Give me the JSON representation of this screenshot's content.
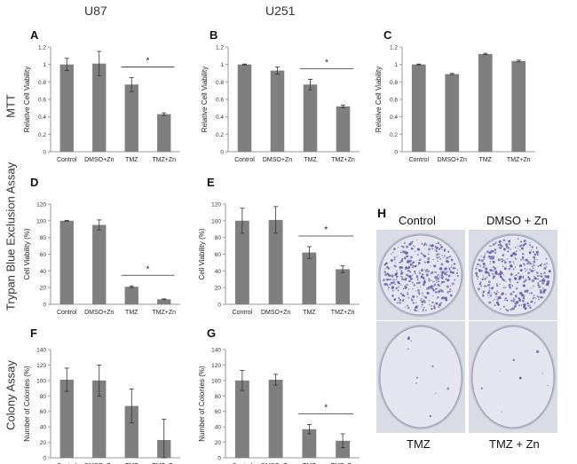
{
  "column_headers": [
    "U87",
    "U251"
  ],
  "row_headers": [
    "MTT",
    "Trypan Blue Exclusion Assay",
    "Colony Assay"
  ],
  "colony_images": {
    "letter": "H",
    "captions": [
      "Control",
      "DMSO + Zn",
      "TMZ",
      "TMZ + Zn"
    ]
  },
  "colors": {
    "bar": "#7f7f7f",
    "axis": "#9a9a9a",
    "dish_bg": "#c9cdd6",
    "colony": "#5d5aa8"
  },
  "chart_data": [
    {
      "id": "A",
      "type": "bar",
      "categories": [
        "Control",
        "DMSO+Zn",
        "TMZ",
        "TMZ+Zn"
      ],
      "values": [
        1.0,
        1.01,
        0.77,
        0.43
      ],
      "errors": [
        0.07,
        0.14,
        0.08,
        0.015
      ],
      "ylabel": "Relative Cell Viability",
      "ylim": [
        0,
        1.2
      ],
      "yticks": [
        "0",
        "0.2",
        "0.4",
        "0.6",
        "0.8",
        "1",
        "1.2"
      ],
      "significance": {
        "from": 2,
        "to": 3,
        "label": "*"
      }
    },
    {
      "id": "B",
      "type": "bar",
      "categories": [
        "Control",
        "DMSO+Zn",
        "TMZ",
        "TMZ+Zn"
      ],
      "values": [
        1.0,
        0.93,
        0.77,
        0.52
      ],
      "errors": [
        0.005,
        0.04,
        0.06,
        0.015
      ],
      "ylabel": "Relative Cell Viability",
      "ylim": [
        0,
        1.2
      ],
      "yticks": [
        "0",
        "0.2",
        "0.4",
        "0.6",
        "0.8",
        "1",
        "1.2"
      ],
      "significance": {
        "from": 2,
        "to": 3,
        "label": "*"
      }
    },
    {
      "id": "C",
      "type": "bar",
      "categories": [
        "Control",
        "DMSO+Zn",
        "TMZ",
        "TMZ+Zn"
      ],
      "values": [
        1.0,
        0.89,
        1.12,
        1.04
      ],
      "errors": [
        0.005,
        0.008,
        0.008,
        0.01
      ],
      "ylabel": "Relative Cell Viability",
      "ylim": [
        0,
        1.2
      ],
      "yticks": [
        "0",
        "0.2",
        "0.4",
        "0.6",
        "0.8",
        "1",
        "1.2"
      ],
      "significance": null
    },
    {
      "id": "D",
      "type": "bar",
      "categories": [
        "Control",
        "DMSO+Zn",
        "TMZ",
        "TMZ+Zn"
      ],
      "values": [
        100,
        95,
        21,
        6
      ],
      "errors": [
        0.5,
        6,
        1,
        0.5
      ],
      "ylabel": "Cell Viability (%)",
      "ylim": [
        0,
        120
      ],
      "yticks": [
        "0",
        "20",
        "40",
        "60",
        "80",
        "100",
        "120"
      ],
      "significance": {
        "from": 2,
        "to": 3,
        "label": "*"
      }
    },
    {
      "id": "E",
      "type": "bar",
      "categories": [
        "Control",
        "DMSO+Zn",
        "TMZ",
        "TMZ+Zn"
      ],
      "values": [
        100,
        101,
        62,
        42
      ],
      "errors": [
        15,
        16,
        7,
        4
      ],
      "ylabel": "Cell Viability (%)",
      "ylim": [
        0,
        120
      ],
      "yticks": [
        "0",
        "20",
        "40",
        "60",
        "80",
        "100",
        "120"
      ],
      "significance": {
        "from": 2,
        "to": 3,
        "label": "*"
      }
    },
    {
      "id": "F",
      "type": "bar",
      "categories": [
        "Control",
        "DMSO+Zn",
        "TMZ",
        "TMZ+Zn"
      ],
      "values": [
        101,
        100,
        67,
        23
      ],
      "errors": [
        15,
        20,
        22,
        27
      ],
      "ylabel": "Number of Colonies (%)",
      "ylim": [
        0,
        140
      ],
      "yticks": [
        "0",
        "20",
        "40",
        "60",
        "80",
        "100",
        "120",
        "140"
      ],
      "significance": null
    },
    {
      "id": "G",
      "type": "bar",
      "categories": [
        "Control",
        "DMSO+Zn",
        "TMZ",
        "TMZ+Zn"
      ],
      "values": [
        100,
        101,
        37,
        22
      ],
      "errors": [
        13,
        7,
        6,
        9
      ],
      "ylabel": "Number of Colonies (%)",
      "ylim": [
        0,
        140
      ],
      "yticks": [
        "0",
        "20",
        "40",
        "60",
        "80",
        "100",
        "120",
        "140"
      ],
      "significance": {
        "from": 2,
        "to": 3,
        "label": "*"
      }
    }
  ]
}
